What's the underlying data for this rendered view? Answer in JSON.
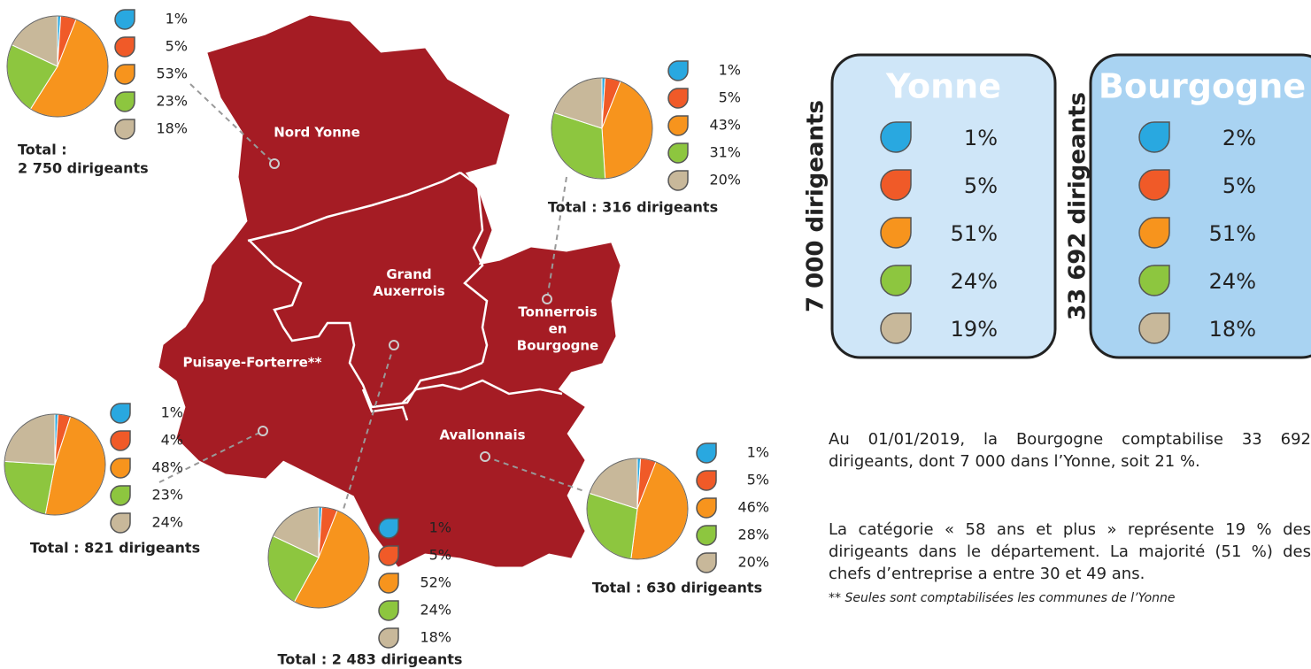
{
  "chart_data": [
    {
      "type": "pie",
      "values": [
        1,
        5,
        53,
        23,
        18
      ],
      "value_labels": [
        "1%",
        "5%",
        "53%",
        "23%",
        "18%"
      ],
      "colors": [
        "#29a8e0",
        "#f05a28",
        "#f7941d",
        "#8dc63f",
        "#c8b89a"
      ],
      "total": [
        "Total :",
        "2 750 dirigeants"
      ]
    },
    {
      "type": "pie",
      "values": [
        1,
        5,
        43,
        31,
        20
      ],
      "value_labels": [
        "1%",
        "5%",
        "43%",
        "31%",
        "20%"
      ],
      "colors": [
        "#29a8e0",
        "#f05a28",
        "#f7941d",
        "#8dc63f",
        "#c8b89a"
      ],
      "total": [
        "Total : 316 dirigeants"
      ]
    },
    {
      "type": "pie",
      "values": [
        1,
        4,
        48,
        23,
        24
      ],
      "value_labels": [
        "1%",
        "4%",
        "48%",
        "23%",
        "24%"
      ],
      "colors": [
        "#29a8e0",
        "#f05a28",
        "#f7941d",
        "#8dc63f",
        "#c8b89a"
      ],
      "total": [
        "Total : 821 dirigeants"
      ]
    },
    {
      "type": "pie",
      "values": [
        1,
        5,
        52,
        24,
        18
      ],
      "value_labels": [
        "1%",
        "5%",
        "52%",
        "24%",
        "18%"
      ],
      "colors": [
        "#29a8e0",
        "#f05a28",
        "#f7941d",
        "#8dc63f",
        "#c8b89a"
      ],
      "total": [
        "Total : 2 483 dirigeants"
      ]
    },
    {
      "type": "pie",
      "values": [
        1,
        5,
        46,
        28,
        20
      ],
      "value_labels": [
        "1%",
        "5%",
        "46%",
        "28%",
        "20%"
      ],
      "colors": [
        "#29a8e0",
        "#f05a28",
        "#f7941d",
        "#8dc63f",
        "#c8b89a"
      ],
      "total": [
        "Total : 630 dirigeants"
      ]
    }
  ],
  "map": {
    "regions": [
      [
        "Nord Yonne"
      ],
      [
        "Grand",
        "Auxerrois"
      ],
      [
        "Tonnerrois",
        "en",
        "Bourgogne"
      ],
      [
        "Puisaye-Forterre**"
      ],
      [
        "Avallonnais"
      ]
    ]
  },
  "boxes": [
    {
      "title": "Yonne",
      "side": "7 000 dirigeants",
      "labels": [
        "1%",
        "5%",
        "51%",
        "24%",
        "19%"
      ]
    },
    {
      "title": "Bourgogne",
      "side": "33 692 dirigeants",
      "labels": [
        "2%",
        "5%",
        "51%",
        "24%",
        "18%"
      ]
    }
  ],
  "text": {
    "paragraphs": [
      "Au 01/01/2019, la Bourgogne comptabilise 33 692 dirigeants, dont 7 000 dans l’Yonne, soit 21 %.",
      "La catégorie « 58 ans et plus » représente 19 % des dirigeants dans le département. La majorité (51 %) des chefs d’entreprise a entre 30 et 49 ans."
    ],
    "footnote": "** Seules sont comptabilisées les communes de l’Yonne"
  }
}
